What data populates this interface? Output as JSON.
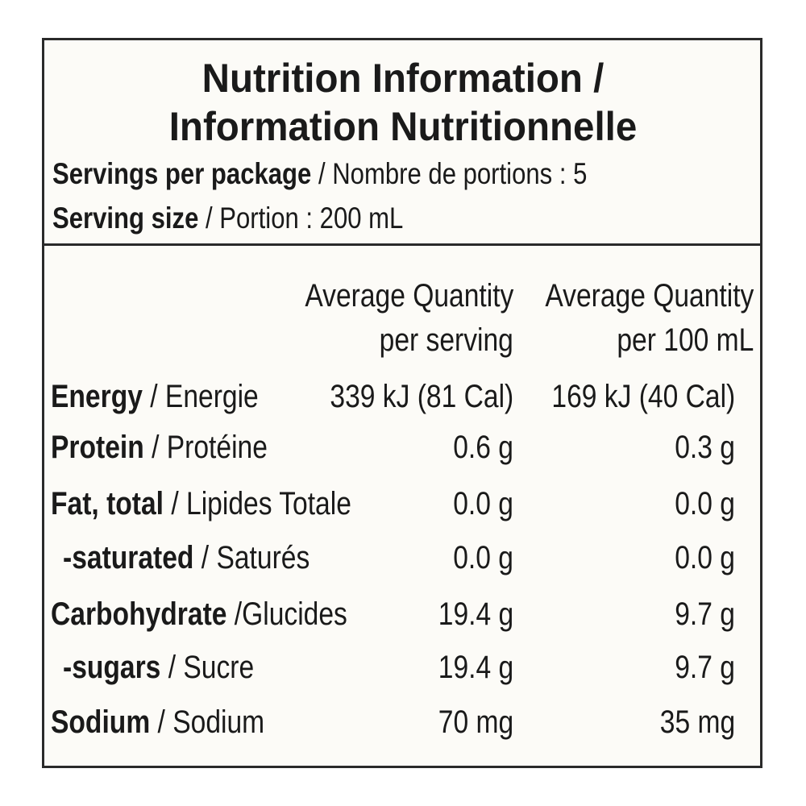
{
  "header": {
    "title": [
      "Nutrition Information /",
      "Information Nutritionnelle"
    ],
    "servings": {
      "label": "Servings per package",
      "text": "/ Nombre de portions : 5"
    },
    "serving_size": {
      "label": "Serving size",
      "text": "/ Portion : 200 mL"
    }
  },
  "table": {
    "columns": [
      [
        "Average Quantity",
        "per serving"
      ],
      [
        "Average Quantity",
        "per 100 mL"
      ]
    ],
    "rows": [
      {
        "name": "Energy",
        "french": "/ Energie",
        "per_serving": "339 kJ (81 Cal)",
        "per_100ml": "169 kJ (40 Cal)"
      },
      {
        "name": "Protein",
        "french": "/ Protéine",
        "per_serving": "0.6 g",
        "per_100ml": "0.3 g"
      },
      {
        "name": "Fat, total",
        "french": "/ Lipides Totale",
        "per_serving": "0.0 g",
        "per_100ml": "0.0 g"
      },
      {
        "name": "-saturated",
        "french": "/ Saturés",
        "per_serving": "0.0 g",
        "per_100ml": "0.0 g"
      },
      {
        "name": "Carbohydrate",
        "french": "/Glucides",
        "per_serving": "19.4 g",
        "per_100ml": "9.7 g"
      },
      {
        "name": "-sugars",
        "french": "/ Sucre",
        "per_serving": "19.4 g",
        "per_100ml": "9.7 g"
      },
      {
        "name": "Sodium",
        "french": "/ Sodium",
        "per_serving": "70 mg",
        "per_100ml": "35 mg"
      }
    ]
  }
}
